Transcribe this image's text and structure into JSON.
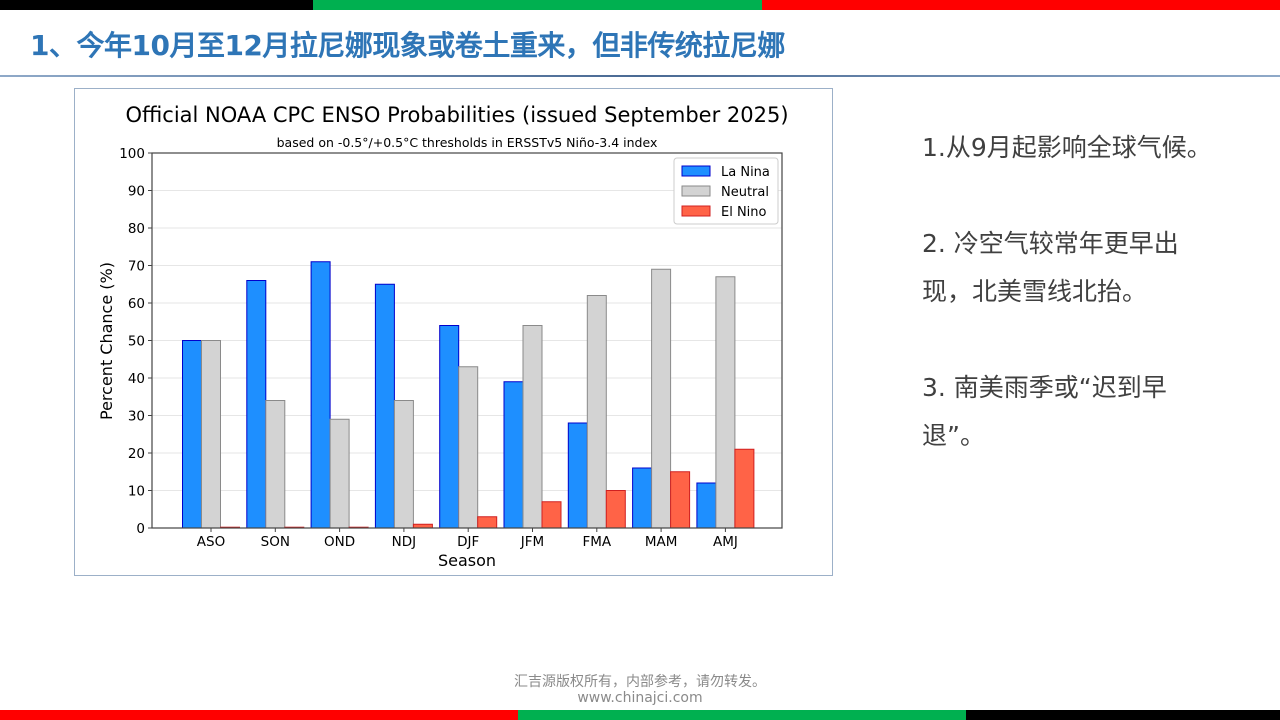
{
  "slide": {
    "title": "1、今年10月至12月拉尼娜现象或卷土重来，但非传统拉尼娜",
    "bullets": [
      "1.从9月起影响全球气候。",
      "2. 冷空气较常年更早出现，北美雪线北抬。",
      "3. 南美雨季或“迟到早退”。"
    ],
    "footer_line1": "汇吉源版权所有，内部参考，请勿转发。",
    "footer_line2": "www.chinajci.com",
    "colors": {
      "title": "#2e75b6",
      "band_black": "#000000",
      "band_green": "#00b050",
      "band_red": "#ff0000"
    }
  },
  "chart_data": {
    "type": "bar",
    "title": "Official NOAA CPC ENSO Probabilities (issued September 2025)",
    "subtitle": "based on -0.5°/+0.5°C thresholds in ERSSTv5 Niño-3.4 index",
    "xlabel": "Season",
    "ylabel": "Percent Chance (%)",
    "ylim": [
      0,
      100
    ],
    "yticks": [
      0,
      10,
      20,
      30,
      40,
      50,
      60,
      70,
      80,
      90,
      100
    ],
    "grid": true,
    "legend_position": "top-right",
    "categories": [
      "ASO",
      "SON",
      "OND",
      "NDJ",
      "DJF",
      "JFM",
      "FMA",
      "MAM",
      "AMJ"
    ],
    "series": [
      {
        "name": "La Nina",
        "color": "#1e8fff",
        "edge": "#0000cc",
        "values": [
          50,
          66,
          71,
          65,
          54,
          39,
          28,
          16,
          12
        ]
      },
      {
        "name": "Neutral",
        "color": "#d3d3d3",
        "edge": "#8a8a8a",
        "values": [
          50,
          34,
          29,
          34,
          43,
          54,
          62,
          69,
          67
        ]
      },
      {
        "name": "El Nino",
        "color": "#ff6347",
        "edge": "#d02020",
        "values": [
          0,
          0,
          0,
          1,
          3,
          7,
          10,
          15,
          21
        ]
      }
    ]
  }
}
